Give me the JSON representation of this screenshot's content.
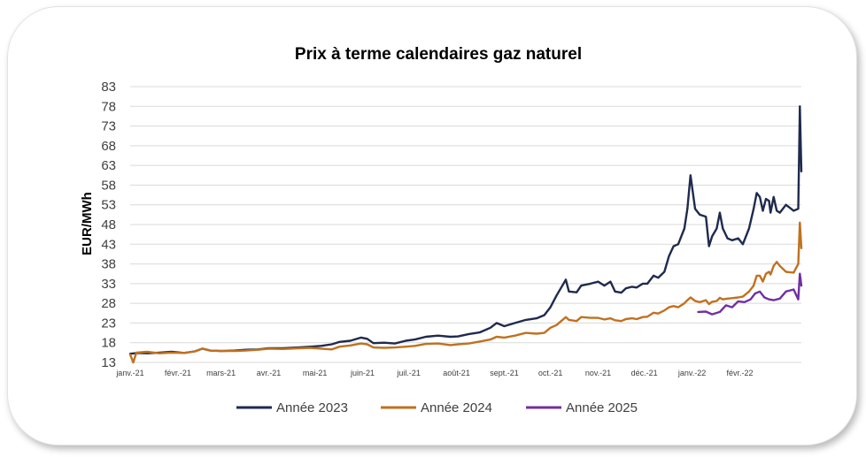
{
  "chart_data": {
    "type": "line",
    "title": "Prix à terme calendaires gaz naturel",
    "xlabel": "",
    "ylabel": "EUR/MWh",
    "x_start": "2021-01-01",
    "x_end": "2022-02-28",
    "ylim": [
      13,
      83
    ],
    "yticks": [
      13,
      18,
      23,
      28,
      33,
      38,
      43,
      48,
      53,
      58,
      63,
      68,
      73,
      78,
      83
    ],
    "xtick_labels": [
      "janv.-21",
      "févr.-21",
      "mars-21",
      "avr.-21",
      "mai-21",
      "juin-21",
      "juil.-21",
      "août-21",
      "sept.-21",
      "oct.-21",
      "nov.-21",
      "déc.-21",
      "janv.-22",
      "févr.-22"
    ],
    "grid": true,
    "legend_position": "bottom",
    "series": [
      {
        "name": "Année 2023",
        "color": "#1F2A4E",
        "points": [
          [
            "2021-01-01",
            15.2
          ],
          [
            "2021-01-06",
            15.4
          ],
          [
            "2021-01-12",
            15.3
          ],
          [
            "2021-01-20",
            15.5
          ],
          [
            "2021-01-28",
            15.7
          ],
          [
            "2021-02-05",
            15.4
          ],
          [
            "2021-02-12",
            15.8
          ],
          [
            "2021-02-17",
            16.5
          ],
          [
            "2021-02-22",
            16.0
          ],
          [
            "2021-03-01",
            15.9
          ],
          [
            "2021-03-10",
            16.0
          ],
          [
            "2021-03-17",
            16.2
          ],
          [
            "2021-03-25",
            16.3
          ],
          [
            "2021-04-01",
            16.6
          ],
          [
            "2021-04-10",
            16.6
          ],
          [
            "2021-04-20",
            16.8
          ],
          [
            "2021-04-28",
            17.0
          ],
          [
            "2021-05-05",
            17.2
          ],
          [
            "2021-05-12",
            17.6
          ],
          [
            "2021-05-17",
            18.2
          ],
          [
            "2021-05-24",
            18.5
          ],
          [
            "2021-05-31",
            19.3
          ],
          [
            "2021-06-04",
            19.0
          ],
          [
            "2021-06-08",
            17.9
          ],
          [
            "2021-06-15",
            18.0
          ],
          [
            "2021-06-22",
            17.8
          ],
          [
            "2021-06-29",
            18.5
          ],
          [
            "2021-07-05",
            18.8
          ],
          [
            "2021-07-12",
            19.5
          ],
          [
            "2021-07-20",
            19.8
          ],
          [
            "2021-07-28",
            19.5
          ],
          [
            "2021-08-02",
            19.6
          ],
          [
            "2021-08-09",
            20.2
          ],
          [
            "2021-08-16",
            20.6
          ],
          [
            "2021-08-23",
            21.8
          ],
          [
            "2021-08-27",
            23.0
          ],
          [
            "2021-09-01",
            22.2
          ],
          [
            "2021-09-08",
            23.0
          ],
          [
            "2021-09-15",
            23.8
          ],
          [
            "2021-09-22",
            24.2
          ],
          [
            "2021-09-27",
            25.0
          ],
          [
            "2021-10-01",
            27.0
          ],
          [
            "2021-10-05",
            30.0
          ],
          [
            "2021-10-08",
            32.0
          ],
          [
            "2021-10-11",
            34.0
          ],
          [
            "2021-10-13",
            31.0
          ],
          [
            "2021-10-18",
            30.8
          ],
          [
            "2021-10-21",
            32.5
          ],
          [
            "2021-10-27",
            33.0
          ],
          [
            "2021-11-01",
            33.5
          ],
          [
            "2021-11-05",
            32.5
          ],
          [
            "2021-11-09",
            33.5
          ],
          [
            "2021-11-12",
            31.0
          ],
          [
            "2021-11-16",
            30.7
          ],
          [
            "2021-11-19",
            31.8
          ],
          [
            "2021-11-23",
            32.2
          ],
          [
            "2021-11-26",
            32.0
          ],
          [
            "2021-11-30",
            33.0
          ],
          [
            "2021-12-03",
            33.0
          ],
          [
            "2021-12-07",
            35.0
          ],
          [
            "2021-12-10",
            34.5
          ],
          [
            "2021-12-14",
            36.0
          ],
          [
            "2021-12-17",
            40.0
          ],
          [
            "2021-12-20",
            42.5
          ],
          [
            "2021-12-23",
            43.0
          ],
          [
            "2021-12-27",
            47.0
          ],
          [
            "2021-12-29",
            52.0
          ],
          [
            "2021-12-31",
            60.5
          ],
          [
            "2022-01-03",
            52.0
          ],
          [
            "2022-01-06",
            50.5
          ],
          [
            "2022-01-10",
            50.0
          ],
          [
            "2022-01-12",
            42.5
          ],
          [
            "2022-01-14",
            45.0
          ],
          [
            "2022-01-17",
            47.0
          ],
          [
            "2022-01-19",
            51.0
          ],
          [
            "2022-01-21",
            47.0
          ],
          [
            "2022-01-24",
            44.5
          ],
          [
            "2022-01-27",
            44.0
          ],
          [
            "2022-01-31",
            44.5
          ],
          [
            "2022-02-03",
            43.0
          ],
          [
            "2022-02-07",
            47.0
          ],
          [
            "2022-02-10",
            52.0
          ],
          [
            "2022-02-12",
            56.0
          ],
          [
            "2022-02-14",
            55.0
          ],
          [
            "2022-02-16",
            51.5
          ],
          [
            "2022-02-18",
            54.5
          ],
          [
            "2022-02-20",
            54.0
          ],
          [
            "2022-02-21",
            51.0
          ],
          [
            "2022-02-23",
            55.0
          ],
          [
            "2022-02-25",
            51.5
          ],
          [
            "2022-02-27",
            51.0
          ],
          [
            "2022-03-03",
            53.0
          ],
          [
            "2022-03-08",
            51.5
          ],
          [
            "2022-03-11",
            52.0
          ],
          [
            "2022-03-12",
            78.0
          ],
          [
            "2022-03-13",
            61.5
          ]
        ]
      },
      {
        "name": "Année 2024",
        "color": "#C0711F",
        "points": [
          [
            "2021-01-01",
            15.0
          ],
          [
            "2021-01-03",
            13.0
          ],
          [
            "2021-01-05",
            15.5
          ],
          [
            "2021-01-12",
            15.7
          ],
          [
            "2021-01-20",
            15.3
          ],
          [
            "2021-01-28",
            15.5
          ],
          [
            "2021-02-05",
            15.4
          ],
          [
            "2021-02-12",
            15.8
          ],
          [
            "2021-02-17",
            16.5
          ],
          [
            "2021-02-22",
            16.0
          ],
          [
            "2021-03-01",
            15.9
          ],
          [
            "2021-03-10",
            15.9
          ],
          [
            "2021-03-17",
            16.0
          ],
          [
            "2021-03-25",
            16.2
          ],
          [
            "2021-04-01",
            16.5
          ],
          [
            "2021-04-10",
            16.4
          ],
          [
            "2021-04-20",
            16.6
          ],
          [
            "2021-04-28",
            16.7
          ],
          [
            "2021-05-05",
            16.5
          ],
          [
            "2021-05-12",
            16.3
          ],
          [
            "2021-05-17",
            17.0
          ],
          [
            "2021-05-24",
            17.3
          ],
          [
            "2021-05-31",
            17.8
          ],
          [
            "2021-06-04",
            17.6
          ],
          [
            "2021-06-08",
            16.8
          ],
          [
            "2021-06-15",
            16.7
          ],
          [
            "2021-06-22",
            16.8
          ],
          [
            "2021-06-29",
            17.0
          ],
          [
            "2021-07-05",
            17.2
          ],
          [
            "2021-07-12",
            17.7
          ],
          [
            "2021-07-20",
            17.8
          ],
          [
            "2021-07-28",
            17.4
          ],
          [
            "2021-08-02",
            17.6
          ],
          [
            "2021-08-09",
            17.8
          ],
          [
            "2021-08-16",
            18.3
          ],
          [
            "2021-08-23",
            18.8
          ],
          [
            "2021-08-27",
            19.5
          ],
          [
            "2021-09-01",
            19.3
          ],
          [
            "2021-09-08",
            19.8
          ],
          [
            "2021-09-15",
            20.5
          ],
          [
            "2021-09-22",
            20.3
          ],
          [
            "2021-09-27",
            20.5
          ],
          [
            "2021-10-01",
            21.8
          ],
          [
            "2021-10-05",
            22.5
          ],
          [
            "2021-10-08",
            23.5
          ],
          [
            "2021-10-11",
            24.5
          ],
          [
            "2021-10-13",
            23.8
          ],
          [
            "2021-10-18",
            23.5
          ],
          [
            "2021-10-21",
            24.5
          ],
          [
            "2021-10-27",
            24.3
          ],
          [
            "2021-11-01",
            24.3
          ],
          [
            "2021-11-05",
            23.9
          ],
          [
            "2021-11-09",
            24.2
          ],
          [
            "2021-11-12",
            23.7
          ],
          [
            "2021-11-16",
            23.5
          ],
          [
            "2021-11-19",
            24.0
          ],
          [
            "2021-11-23",
            24.2
          ],
          [
            "2021-11-26",
            24.0
          ],
          [
            "2021-11-30",
            24.5
          ],
          [
            "2021-12-03",
            24.6
          ],
          [
            "2021-12-07",
            25.6
          ],
          [
            "2021-12-10",
            25.4
          ],
          [
            "2021-12-14",
            26.2
          ],
          [
            "2021-12-17",
            27.0
          ],
          [
            "2021-12-20",
            27.3
          ],
          [
            "2021-12-23",
            27.0
          ],
          [
            "2021-12-27",
            28.0
          ],
          [
            "2021-12-29",
            28.8
          ],
          [
            "2021-12-31",
            29.5
          ],
          [
            "2022-01-03",
            28.6
          ],
          [
            "2022-01-06",
            28.3
          ],
          [
            "2022-01-10",
            28.8
          ],
          [
            "2022-01-12",
            27.8
          ],
          [
            "2022-01-14",
            28.4
          ],
          [
            "2022-01-17",
            28.6
          ],
          [
            "2022-01-19",
            29.4
          ],
          [
            "2022-01-21",
            29.0
          ],
          [
            "2022-01-24",
            29.2
          ],
          [
            "2022-01-27",
            29.3
          ],
          [
            "2022-01-31",
            29.5
          ],
          [
            "2022-02-03",
            29.7
          ],
          [
            "2022-02-07",
            31.0
          ],
          [
            "2022-02-10",
            32.5
          ],
          [
            "2022-02-12",
            35.0
          ],
          [
            "2022-02-14",
            35.0
          ],
          [
            "2022-02-16",
            33.5
          ],
          [
            "2022-02-18",
            35.5
          ],
          [
            "2022-02-20",
            36.0
          ],
          [
            "2022-02-21",
            35.3
          ],
          [
            "2022-02-23",
            37.5
          ],
          [
            "2022-02-25",
            38.5
          ],
          [
            "2022-02-27",
            37.5
          ],
          [
            "2022-03-03",
            36.0
          ],
          [
            "2022-03-08",
            35.8
          ],
          [
            "2022-03-11",
            38.0
          ],
          [
            "2022-03-12",
            48.5
          ],
          [
            "2022-03-13",
            42.0
          ]
        ]
      },
      {
        "name": "Année 2025",
        "color": "#7030A0",
        "points": [
          [
            "2022-01-05",
            25.8
          ],
          [
            "2022-01-10",
            25.9
          ],
          [
            "2022-01-14",
            25.2
          ],
          [
            "2022-01-19",
            25.8
          ],
          [
            "2022-01-23",
            27.5
          ],
          [
            "2022-01-27",
            27.0
          ],
          [
            "2022-01-31",
            28.5
          ],
          [
            "2022-02-04",
            28.3
          ],
          [
            "2022-02-08",
            29.0
          ],
          [
            "2022-02-11",
            30.5
          ],
          [
            "2022-02-14",
            31.0
          ],
          [
            "2022-02-17",
            29.5
          ],
          [
            "2022-02-20",
            29.0
          ],
          [
            "2022-02-23",
            28.8
          ],
          [
            "2022-02-27",
            29.2
          ],
          [
            "2022-03-03",
            31.0
          ],
          [
            "2022-03-08",
            31.5
          ],
          [
            "2022-03-11",
            29.0
          ],
          [
            "2022-03-12",
            35.5
          ],
          [
            "2022-03-13",
            32.5
          ]
        ]
      }
    ]
  }
}
